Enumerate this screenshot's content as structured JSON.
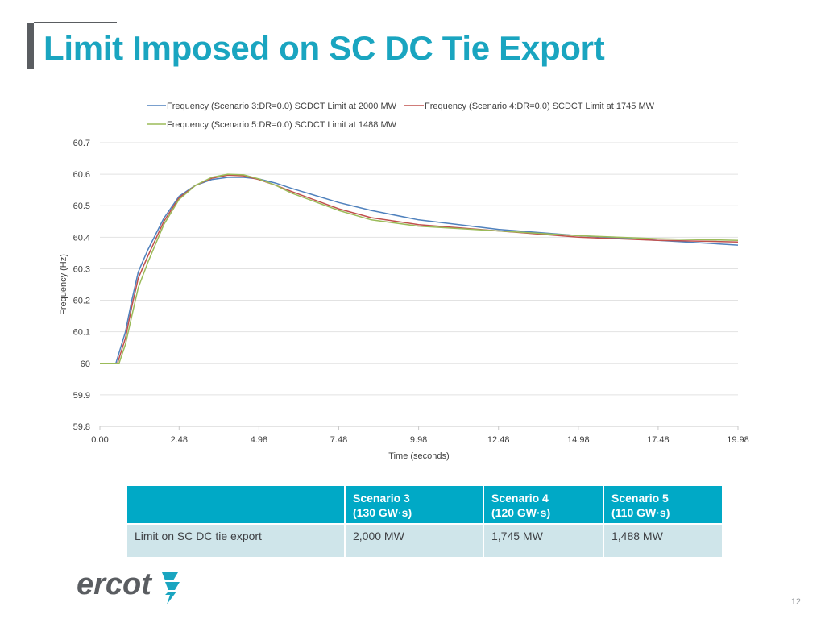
{
  "slide": {
    "title": "Limit Imposed on SC DC Tie Export",
    "page_number": "12",
    "logo_text": "ercot",
    "accent_color": "#1aa5c0"
  },
  "chart_data": {
    "type": "line",
    "title": "",
    "xlabel": "Time (seconds)",
    "ylabel": "Frequency (Hz)",
    "xlim": [
      0,
      19.98
    ],
    "ylim": [
      59.8,
      60.7
    ],
    "x_ticks": [
      "0.00",
      "2.48",
      "4.98",
      "7.48",
      "9.98",
      "12.48",
      "14.98",
      "17.48",
      "19.98"
    ],
    "y_ticks": [
      "60.7",
      "60.6",
      "60.5",
      "60.4",
      "60.3",
      "60.2",
      "60.1",
      "60",
      "59.9",
      "59.8"
    ],
    "grid": true,
    "legend_position": "top",
    "series": [
      {
        "name": "Frequency (Scenario 3:DR=0.0) SCDCT Limit at 2000 MW",
        "color": "#4f81bd",
        "x": [
          0,
          0.5,
          0.8,
          1.0,
          1.2,
          1.5,
          2.0,
          2.48,
          3.0,
          3.5,
          4.0,
          4.5,
          4.98,
          5.5,
          6.0,
          7.48,
          8.5,
          9.98,
          12.48,
          14.98,
          17.48,
          19.98
        ],
        "y": [
          60.0,
          60.0,
          60.1,
          60.2,
          60.29,
          60.36,
          60.46,
          60.53,
          60.565,
          60.583,
          60.59,
          60.59,
          60.585,
          60.572,
          60.555,
          60.51,
          60.485,
          60.455,
          60.425,
          60.405,
          60.39,
          60.375
        ]
      },
      {
        "name": "Frequency (Scenario 4:DR=0.0) SCDCT Limit at 1745 MW",
        "color": "#c0504d",
        "x": [
          0,
          0.55,
          0.8,
          1.0,
          1.2,
          1.5,
          2.0,
          2.48,
          3.0,
          3.5,
          4.0,
          4.5,
          4.98,
          5.5,
          6.0,
          7.48,
          8.5,
          9.98,
          12.48,
          14.98,
          17.48,
          19.98
        ],
        "y": [
          60.0,
          60.0,
          60.08,
          60.18,
          60.27,
          60.34,
          60.45,
          60.525,
          60.565,
          60.587,
          60.597,
          60.595,
          60.583,
          60.565,
          60.545,
          60.49,
          60.462,
          60.44,
          60.42,
          60.4,
          60.39,
          60.385
        ]
      },
      {
        "name": "Frequency (Scenario 5:DR=0.0) SCDCT Limit at 1488 MW",
        "color": "#9bbb59",
        "x": [
          0,
          0.6,
          0.8,
          1.0,
          1.2,
          1.5,
          2.0,
          2.48,
          3.0,
          3.5,
          4.0,
          4.5,
          4.98,
          5.5,
          6.0,
          7.48,
          8.5,
          9.98,
          12.48,
          14.98,
          17.48,
          19.98
        ],
        "y": [
          60.0,
          60.0,
          60.06,
          60.15,
          60.24,
          60.32,
          60.44,
          60.52,
          60.565,
          60.59,
          60.6,
          60.598,
          60.585,
          60.565,
          60.54,
          60.485,
          60.455,
          60.435,
          60.42,
          60.405,
          60.395,
          60.39
        ]
      }
    ]
  },
  "table": {
    "headers": [
      {
        "line1": "",
        "line2": ""
      },
      {
        "line1": "Scenario 3",
        "line2": "(130 GW·s)"
      },
      {
        "line1": "Scenario 4",
        "line2": "(120 GW·s)"
      },
      {
        "line1": "Scenario 5",
        "line2": "(110 GW·s)"
      }
    ],
    "rows": [
      [
        "Limit on SC DC tie export",
        "2,000 MW",
        "1,745 MW",
        "1,488 MW"
      ]
    ],
    "header_color": "#00a9c6",
    "row_color": "#cfe5ea"
  }
}
